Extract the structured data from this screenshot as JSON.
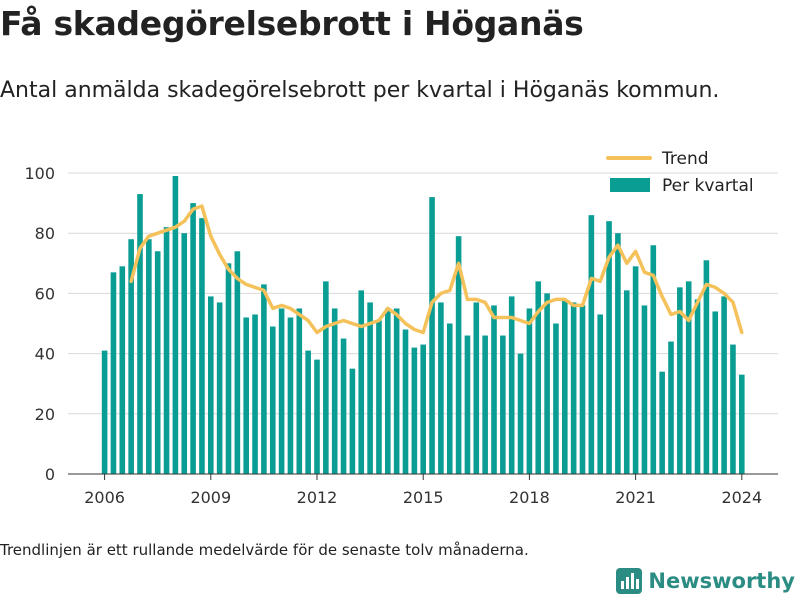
{
  "header": {
    "title": "Få skadegörelsebrott i Höganäs",
    "subtitle": "Antal anmälda skadegörelsebrott per kvartal i Höganäs kommun."
  },
  "footer": {
    "note": "Trendlinjen är ett rullande medelvärde för de senaste tolv månaderna.",
    "brand": "Newsworthy"
  },
  "colors": {
    "bars": "#0a9d94",
    "trend": "#f5c15a",
    "grid": "#d9d9d9",
    "brand": "#2b8c83"
  },
  "chart_data": {
    "type": "bar",
    "x_start_year": 2006,
    "x_start_quarter": 1,
    "x_ticks": [
      "2006",
      "2009",
      "2012",
      "2015",
      "2018",
      "2021",
      "2024"
    ],
    "y_ticks": [
      "0",
      "20",
      "40",
      "60",
      "80",
      "100"
    ],
    "ylim": [
      0,
      100
    ],
    "grid": true,
    "legend": {
      "placement": "top-right",
      "entries": [
        "Trend",
        "Per kvartal"
      ]
    },
    "series": [
      {
        "name": "Per kvartal",
        "type": "bar",
        "values": [
          41,
          67,
          69,
          78,
          93,
          78,
          74,
          82,
          99,
          80,
          90,
          85,
          59,
          57,
          70,
          74,
          52,
          53,
          63,
          49,
          55,
          52,
          55,
          41,
          38,
          64,
          55,
          45,
          35,
          61,
          57,
          51,
          55,
          55,
          48,
          42,
          43,
          92,
          57,
          50,
          79,
          46,
          57,
          46,
          56,
          46,
          59,
          40,
          55,
          64,
          60,
          50,
          58,
          57,
          56,
          86,
          53,
          84,
          80,
          61,
          69,
          56,
          76,
          34,
          44,
          62,
          64,
          58,
          71,
          54,
          59,
          43,
          33
        ]
      },
      {
        "name": "Trend",
        "type": "line",
        "values": [
          null,
          null,
          null,
          64,
          75,
          79,
          80,
          81,
          82,
          84,
          88,
          89,
          79,
          73,
          68,
          65,
          63,
          62,
          61,
          55,
          56,
          55,
          53,
          51,
          47,
          49,
          50,
          51,
          50,
          49,
          50,
          51,
          55,
          53,
          50,
          48,
          47,
          57,
          60,
          61,
          70,
          58,
          58,
          57,
          52,
          52,
          52,
          51,
          50,
          54,
          57,
          58,
          58,
          56,
          56,
          65,
          64,
          72,
          76,
          70,
          74,
          67,
          66,
          59,
          53,
          54,
          51,
          57,
          63,
          62,
          60,
          57,
          47
        ]
      }
    ]
  }
}
